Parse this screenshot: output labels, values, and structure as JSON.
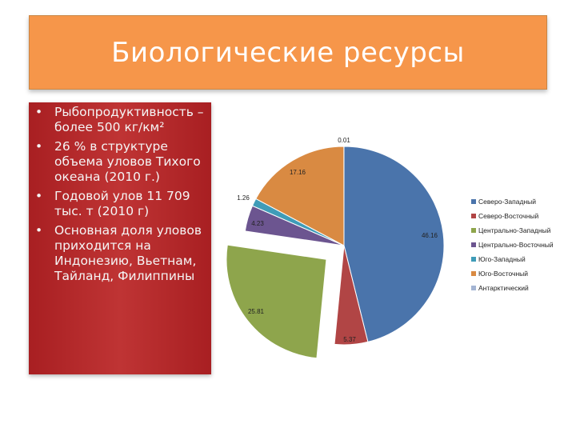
{
  "slide": {
    "title": "Биологические ресурсы",
    "bullets": [
      "Рыбопродуктивность – более 500 кг/км²",
      "26 % в структуре объема уловов Тихого океана (2010 г.)",
      "Годовой улов 11 709 тыс. т (2010 г)",
      "Основная доля уловов приходится на Индонезию, Вьетнам, Тайланд, Филиппины"
    ]
  },
  "chart_data": {
    "type": "pie",
    "title": "",
    "legend_position": "right",
    "categories": [
      "Северо-Западный",
      "Северо-Восточный",
      "Центрально-Западный",
      "Центрально-Восточный",
      "Юго-Западный",
      "Юго-Восточный",
      "Антарктический"
    ],
    "values": [
      46.16,
      5.37,
      25.81,
      4.23,
      1.26,
      17.16,
      0.01
    ],
    "labels": [
      "46.16",
      "5.37",
      "25.81",
      "4.23",
      "1.26",
      "17.16",
      "0.01"
    ],
    "colors": [
      "#4a74ab",
      "#b14545",
      "#8ea54c",
      "#6c5590",
      "#3f9cb8",
      "#d98a42",
      "#a3b4d3"
    ],
    "exploded": [
      false,
      false,
      true,
      false,
      false,
      false,
      false
    ]
  }
}
